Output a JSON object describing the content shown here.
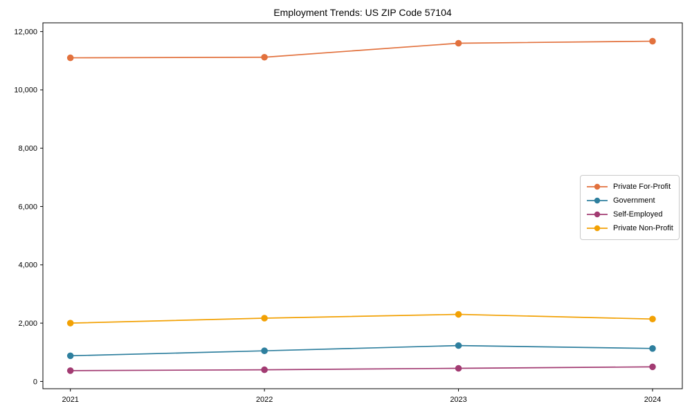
{
  "chart_data": {
    "type": "line",
    "title": "Employment Trends: US ZIP Code 57104",
    "xlabel": "",
    "ylabel": "",
    "x": [
      2021,
      2022,
      2023,
      2024
    ],
    "series": [
      {
        "name": "Private For-Profit",
        "color": "#E2713D",
        "values": [
          11100,
          11120,
          11600,
          11670
        ]
      },
      {
        "name": "Government",
        "color": "#2E7F9E",
        "values": [
          880,
          1050,
          1230,
          1130
        ]
      },
      {
        "name": "Self-Employed",
        "color": "#A23B72",
        "values": [
          370,
          400,
          450,
          500
        ]
      },
      {
        "name": "Private Non-Profit",
        "color": "#F2A104",
        "values": [
          2000,
          2170,
          2300,
          2140
        ]
      }
    ],
    "yticks": [
      0,
      2000,
      4000,
      6000,
      8000,
      10000,
      12000
    ],
    "ylim": [
      -250,
      12300
    ],
    "grid": false,
    "marker": "circle",
    "legend_position": "center right",
    "frame_color": "#000000"
  }
}
